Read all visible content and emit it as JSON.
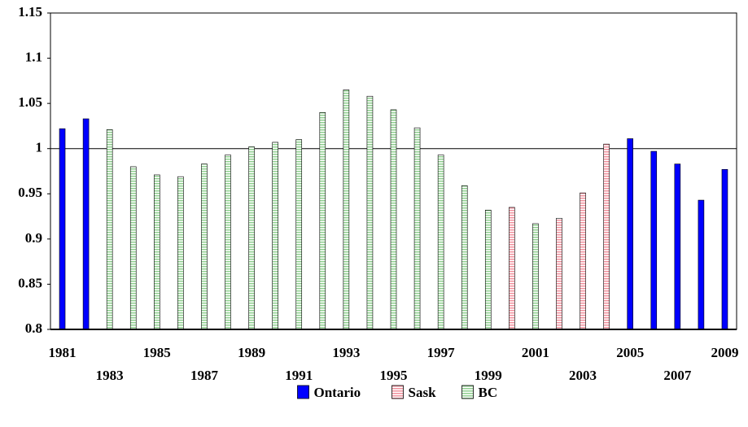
{
  "chart_data": {
    "type": "bar",
    "categories": [
      "1981",
      null,
      "1983",
      null,
      "1985",
      null,
      "1987",
      null,
      "1989",
      null,
      "1991",
      null,
      "1993",
      null,
      "1995",
      null,
      "1997",
      null,
      "1999",
      null,
      "2001",
      null,
      "2003",
      null,
      "2005",
      null,
      "2007",
      null,
      "2009"
    ],
    "series": [
      {
        "name": "Ontario",
        "color": "#0000ff",
        "pattern": "solid",
        "values": [
          1.022,
          1.033,
          null,
          null,
          null,
          null,
          null,
          null,
          null,
          null,
          null,
          null,
          null,
          null,
          null,
          null,
          null,
          null,
          null,
          null,
          null,
          null,
          null,
          null,
          1.011,
          0.997,
          0.983,
          0.943,
          0.977
        ]
      },
      {
        "name": "Sask",
        "color": "#f0909c",
        "pattern": "horizontal",
        "values": [
          null,
          null,
          null,
          null,
          null,
          null,
          null,
          null,
          null,
          null,
          null,
          null,
          null,
          null,
          null,
          null,
          null,
          null,
          null,
          0.935,
          null,
          0.923,
          0.951,
          1.005,
          null,
          null,
          null,
          null,
          null
        ]
      },
      {
        "name": "BC",
        "color": "#8fcf8f",
        "pattern": "horizontal",
        "values": [
          null,
          null,
          1.021,
          0.98,
          0.971,
          0.969,
          0.983,
          0.993,
          1.002,
          1.007,
          1.01,
          1.04,
          1.065,
          1.058,
          1.043,
          1.023,
          0.993,
          0.959,
          0.932,
          null,
          0.917,
          null,
          null,
          null,
          null,
          null,
          null,
          null,
          null
        ]
      }
    ],
    "ylim": [
      0.8,
      1.15
    ],
    "yticks": [
      0.8,
      0.85,
      0.9,
      0.95,
      1,
      1.05,
      1.1,
      1.15
    ],
    "reference_line": 1,
    "legend": "bottom"
  }
}
